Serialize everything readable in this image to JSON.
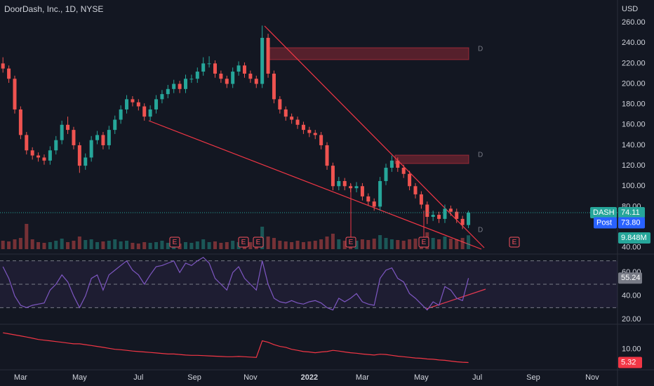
{
  "chart_data": [
    {
      "type": "candlestick",
      "title": "DoorDash, Inc., 1D, NYSE",
      "currency": "USD",
      "symbol": "DASH",
      "up_color": "#26a69a",
      "down_color": "#ef5350",
      "xlim": [
        -0.5,
        104.3
      ],
      "xticks": [
        {
          "value": 3,
          "label": "Mar"
        },
        {
          "value": 13,
          "label": "May"
        },
        {
          "value": 23,
          "label": "Jul"
        },
        {
          "value": 32.5,
          "label": "Sep"
        },
        {
          "value": 42,
          "label": "Nov"
        },
        {
          "value": 52,
          "label": "2022"
        },
        {
          "value": 61,
          "label": "Mar"
        },
        {
          "value": 71,
          "label": "May"
        },
        {
          "value": 80.5,
          "label": "Jul"
        },
        {
          "value": 90,
          "label": "Sep"
        },
        {
          "value": 100,
          "label": "Nov"
        }
      ],
      "ylim": [
        35,
        282
      ],
      "yticks": [
        {
          "value": 40,
          "label": "40.00"
        },
        {
          "value": 80,
          "label": "80.00"
        },
        {
          "value": 100,
          "label": "100.00"
        },
        {
          "value": 120,
          "label": "120.00"
        },
        {
          "value": 140,
          "label": "140.00"
        },
        {
          "value": 160,
          "label": "160.00"
        },
        {
          "value": 180,
          "label": "180.00"
        },
        {
          "value": 200,
          "label": "200.00"
        },
        {
          "value": 220,
          "label": "220.00"
        },
        {
          "value": 240,
          "label": "240.00"
        },
        {
          "value": 260,
          "label": "260.00"
        }
      ],
      "ohlc": [
        [
          220,
          226,
          211,
          215
        ],
        [
          215,
          218,
          201,
          205
        ],
        [
          205,
          208,
          171,
          175
        ],
        [
          175,
          178,
          146,
          150
        ],
        [
          150,
          153,
          131,
          135
        ],
        [
          135,
          138,
          126,
          130
        ],
        [
          130,
          133,
          124,
          128
        ],
        [
          128,
          131,
          121,
          125
        ],
        [
          125,
          139,
          121,
          135
        ],
        [
          135,
          149,
          131,
          145
        ],
        [
          145,
          164,
          141,
          160
        ],
        [
          160,
          168,
          151,
          155
        ],
        [
          155,
          158,
          136,
          140
        ],
        [
          140,
          143,
          113,
          120
        ],
        [
          120,
          132,
          116,
          128
        ],
        [
          128,
          149,
          124,
          145
        ],
        [
          145,
          154,
          141,
          150
        ],
        [
          150,
          153,
          136,
          140
        ],
        [
          140,
          159,
          136,
          155
        ],
        [
          155,
          169,
          151,
          165
        ],
        [
          165,
          179,
          161,
          175
        ],
        [
          175,
          189,
          171,
          185
        ],
        [
          185,
          188,
          178,
          182
        ],
        [
          182,
          185,
          174,
          178
        ],
        [
          178,
          181,
          164,
          168
        ],
        [
          168,
          179,
          164,
          175
        ],
        [
          175,
          189,
          171,
          185
        ],
        [
          185,
          194,
          181,
          190
        ],
        [
          190,
          199,
          186,
          195
        ],
        [
          195,
          204,
          191,
          200
        ],
        [
          200,
          203,
          191,
          195
        ],
        [
          195,
          209,
          191,
          205
        ],
        [
          205,
          209,
          201,
          205
        ],
        [
          205,
          216,
          201,
          212
        ],
        [
          212,
          226,
          208,
          220
        ],
        [
          220,
          227,
          216,
          220
        ],
        [
          220,
          223,
          206,
          210
        ],
        [
          210,
          213,
          201,
          205
        ],
        [
          205,
          208,
          196,
          200
        ],
        [
          200,
          216,
          196,
          212
        ],
        [
          212,
          222,
          208,
          218
        ],
        [
          218,
          221,
          206,
          210
        ],
        [
          210,
          213,
          201,
          205
        ],
        [
          205,
          208,
          196,
          200
        ],
        [
          200,
          257,
          196,
          245
        ],
        [
          245,
          249,
          206,
          210
        ],
        [
          210,
          213,
          181,
          185
        ],
        [
          185,
          188,
          171,
          175
        ],
        [
          175,
          178,
          164,
          168
        ],
        [
          168,
          171,
          161,
          165
        ],
        [
          165,
          168,
          156,
          160
        ],
        [
          160,
          163,
          151,
          155
        ],
        [
          155,
          158,
          148,
          152
        ],
        [
          152,
          155,
          146,
          150
        ],
        [
          150,
          153,
          136,
          140
        ],
        [
          140,
          143,
          116,
          120
        ],
        [
          120,
          123,
          96,
          100
        ],
        [
          100,
          109,
          96,
          105
        ],
        [
          105,
          108,
          96,
          100
        ],
        [
          100,
          103,
          94,
          98
        ],
        [
          98,
          104,
          94,
          100
        ],
        [
          100,
          103,
          86,
          90
        ],
        [
          90,
          93,
          81,
          85
        ],
        [
          85,
          88,
          76,
          80
        ],
        [
          80,
          109,
          76,
          105
        ],
        [
          105,
          122,
          101,
          118
        ],
        [
          118,
          130,
          114,
          125
        ],
        [
          125,
          128,
          114,
          118
        ],
        [
          118,
          121,
          108,
          112
        ],
        [
          112,
          115,
          96,
          100
        ],
        [
          100,
          103,
          88,
          92
        ],
        [
          92,
          95,
          78,
          82
        ],
        [
          82,
          85,
          63,
          70
        ],
        [
          70,
          76,
          66,
          72
        ],
        [
          72,
          75,
          64,
          68
        ],
        [
          68,
          82,
          64,
          78
        ],
        [
          78,
          81,
          71,
          75
        ],
        [
          75,
          78,
          64,
          68
        ],
        [
          68,
          71,
          58,
          62
        ],
        [
          62,
          76,
          59,
          74.11
        ]
      ],
      "post": {
        "name": "Post",
        "value": 73.8,
        "label": "73.80"
      },
      "volume_lim": [
        0,
        40000000
      ],
      "volume": [
        6000000,
        5500000,
        7000000,
        8000000,
        18000000,
        7000000,
        5000000,
        4500000,
        5000000,
        6000000,
        7500000,
        5000000,
        6000000,
        9000000,
        6500000,
        7000000,
        5000000,
        5500000,
        6000000,
        7000000,
        5500000,
        6000000,
        4500000,
        4000000,
        5000000,
        4500000,
        5000000,
        6000000,
        4500000,
        5000000,
        4000000,
        5000000,
        4500000,
        5500000,
        7000000,
        5000000,
        5500000,
        4500000,
        5000000,
        6000000,
        5000000,
        4500000,
        5000000,
        6000000,
        16000000,
        9000000,
        8000000,
        6000000,
        5500000,
        5000000,
        6000000,
        5000000,
        5500000,
        6000000,
        7000000,
        9000000,
        11000000,
        7000000,
        6000000,
        6500000,
        6000000,
        7000000,
        6500000,
        7500000,
        10000000,
        8000000,
        7000000,
        6500000,
        6000000,
        7000000,
        7500000,
        8000000,
        12000000,
        8000000,
        7000000,
        9000000,
        7500000,
        7000000,
        8000000,
        9848000
      ],
      "volume_value_labels": [
        null,
        null,
        null,
        null,
        null,
        null,
        null,
        null,
        null,
        null,
        null,
        null,
        null,
        null,
        null,
        null,
        null,
        null,
        null,
        null,
        null,
        null,
        null,
        null,
        null,
        null,
        null,
        null,
        null,
        null,
        null,
        null,
        null,
        null,
        null,
        null,
        null,
        null,
        null,
        null,
        null,
        null,
        null,
        null,
        null,
        null,
        null,
        null,
        null,
        null,
        null,
        null,
        null,
        null,
        null,
        null,
        null,
        null,
        null,
        null,
        null,
        null,
        null,
        null,
        null,
        null,
        null,
        null,
        null,
        null,
        null,
        null,
        null,
        null,
        null,
        null,
        null,
        null,
        null,
        "9.848M"
      ],
      "event_labels": [
        "E",
        "E",
        "E",
        "E",
        "E",
        "E"
      ],
      "zone_labels": [
        "D",
        "D",
        "D"
      ]
    },
    {
      "type": "line",
      "color": "#7e57c2",
      "ylim": [
        17,
        74
      ],
      "bands": [
        30,
        50,
        70
      ],
      "yticks": [
        {
          "value": 20,
          "label": "20.00"
        },
        {
          "value": 40,
          "label": "40.00"
        },
        {
          "value": 60,
          "label": "60.00"
        }
      ],
      "values": [
        65,
        55,
        40,
        32,
        30,
        32,
        33,
        34,
        45,
        50,
        58,
        52,
        40,
        30,
        40,
        55,
        58,
        45,
        58,
        62,
        66,
        70,
        62,
        58,
        50,
        58,
        65,
        66,
        68,
        70,
        60,
        68,
        66,
        70,
        73,
        68,
        55,
        50,
        45,
        60,
        65,
        55,
        50,
        45,
        70,
        50,
        38,
        35,
        34,
        36,
        34,
        33,
        35,
        36,
        34,
        30,
        28,
        38,
        35,
        38,
        42,
        35,
        33,
        32,
        55,
        62,
        64,
        55,
        52,
        42,
        38,
        33,
        28,
        35,
        32,
        48,
        45,
        38,
        36,
        55.24
      ],
      "last_color": "#787b86"
    },
    {
      "type": "line",
      "color": "#f23645",
      "ylim": [
        4,
        30
      ],
      "log": true,
      "yticks": [
        {
          "value": 10,
          "label": "10.00"
        }
      ],
      "values": [
        22,
        21,
        20,
        19,
        18,
        17,
        16,
        15.5,
        15,
        14.5,
        14,
        13.5,
        13,
        13,
        12.5,
        12,
        11.5,
        11,
        10.5,
        10,
        9.8,
        9.5,
        9.2,
        9,
        8.8,
        8.6,
        8.4,
        8.2,
        8,
        8,
        7.8,
        7.6,
        7.5,
        7.5,
        7.4,
        7.3,
        7.2,
        7.1,
        7,
        7,
        7.1,
        7,
        6.9,
        6.8,
        15,
        14,
        12.5,
        11.5,
        11,
        10,
        9.5,
        9,
        8.8,
        8.5,
        8.8,
        9,
        9.5,
        9.2,
        8.8,
        8.5,
        8.3,
        8,
        7.8,
        7.6,
        7.9,
        7.8,
        7.5,
        7.2,
        7,
        6.8,
        6.6,
        6.5,
        6.3,
        6.2,
        6,
        5.9,
        5.7,
        5.5,
        5.4,
        5.32
      ],
      "last_color": "#f23645"
    }
  ]
}
